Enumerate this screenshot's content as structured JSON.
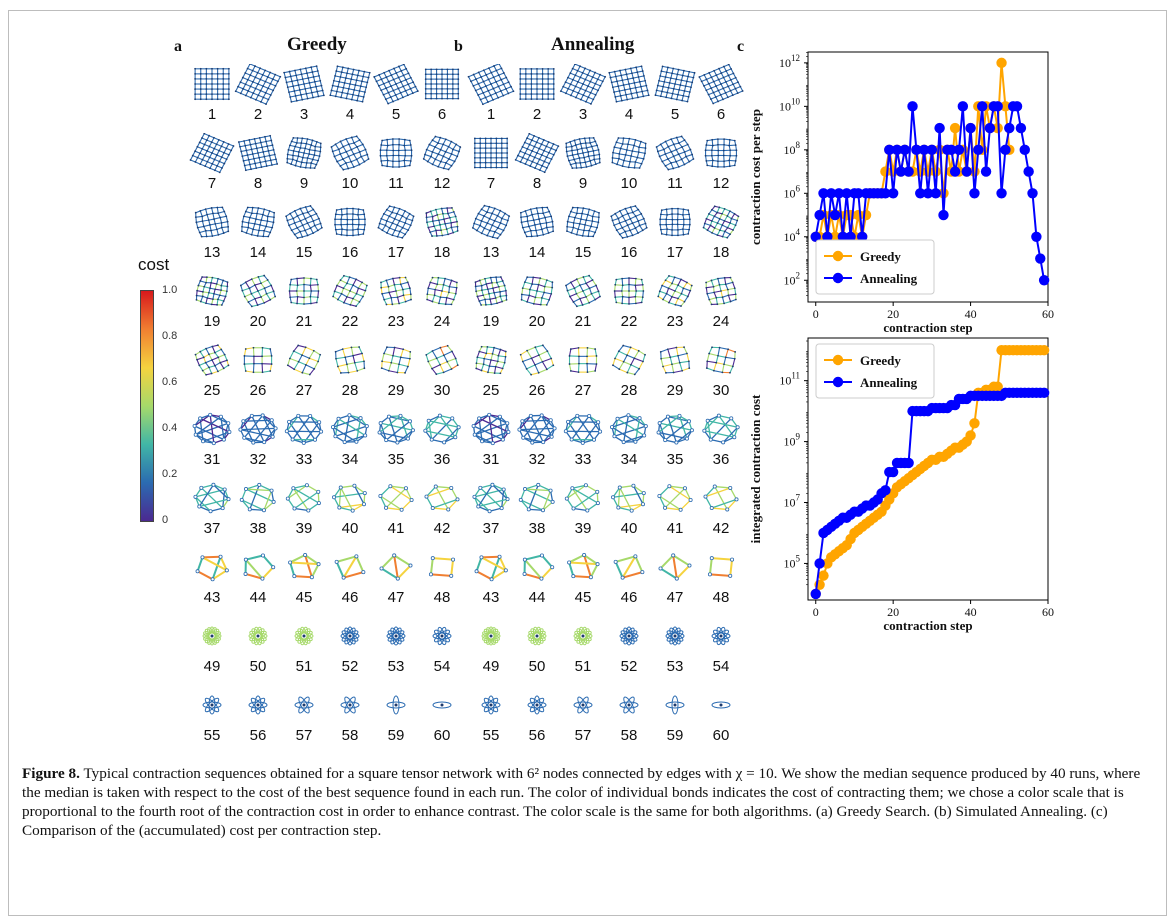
{
  "panels": {
    "a": {
      "label": "a",
      "title": "Greedy"
    },
    "b": {
      "label": "b",
      "title": "Annealing"
    },
    "c": {
      "label": "c"
    }
  },
  "step_numbers": [
    "1",
    "2",
    "3",
    "4",
    "5",
    "6",
    "7",
    "8",
    "9",
    "10",
    "11",
    "12",
    "13",
    "14",
    "15",
    "16",
    "17",
    "18",
    "19",
    "20",
    "21",
    "22",
    "23",
    "24",
    "25",
    "26",
    "27",
    "28",
    "29",
    "30",
    "31",
    "32",
    "33",
    "34",
    "35",
    "36",
    "37",
    "38",
    "39",
    "40",
    "41",
    "42",
    "43",
    "44",
    "45",
    "46",
    "47",
    "48",
    "49",
    "50",
    "51",
    "52",
    "53",
    "54",
    "55",
    "56",
    "57",
    "58",
    "59",
    "60"
  ],
  "colorbar": {
    "title": "cost",
    "ticks": [
      "1.0",
      "0.8",
      "0.6",
      "0.4",
      "0.2",
      "0"
    ],
    "colors": [
      "#d7191c",
      "#f07f31",
      "#f5d33f",
      "#a6d96a",
      "#41b6a6",
      "#2b6bb1",
      "#4b2991"
    ]
  },
  "series_colors": {
    "greedy": "#ffa500",
    "annealing": "#0000ff"
  },
  "chart_data": [
    {
      "type": "line",
      "xlabel": "contraction step",
      "ylabel": "contraction cost per step",
      "xlim": [
        -2,
        60
      ],
      "ylim_log10": [
        1,
        12.5
      ],
      "log_y": true,
      "x_ticks": [
        "0",
        "20",
        "40",
        "60"
      ],
      "y_ticks": [
        "10^2",
        "10^4",
        "10^6",
        "10^8",
        "10^10",
        "10^12"
      ],
      "legend": "lower-left",
      "series": [
        {
          "name": "Greedy",
          "x": [
            0,
            1,
            2,
            3,
            4,
            5,
            6,
            7,
            8,
            9,
            10,
            11,
            12,
            13,
            14,
            15,
            16,
            17,
            18,
            19,
            20,
            21,
            22,
            23,
            24,
            25,
            26,
            27,
            28,
            29,
            30,
            31,
            32,
            33,
            34,
            35,
            36,
            37,
            38,
            39,
            40,
            41,
            42,
            43,
            44,
            45,
            46,
            47,
            48,
            49,
            50
          ],
          "log10_y": [
            4,
            4,
            5,
            4,
            5,
            4,
            5,
            4,
            5,
            5,
            4,
            5,
            4,
            5,
            6,
            6,
            6,
            6,
            7,
            8,
            7,
            8,
            7,
            8,
            7,
            7,
            8,
            7,
            8,
            7,
            8,
            7,
            8,
            6,
            8,
            7,
            9,
            7,
            8,
            7,
            9,
            7,
            10,
            8,
            10,
            9,
            10,
            9,
            12,
            10,
            8
          ]
        },
        {
          "name": "Annealing",
          "x": [
            0,
            1,
            2,
            3,
            4,
            5,
            6,
            7,
            8,
            9,
            10,
            11,
            12,
            13,
            14,
            15,
            16,
            17,
            18,
            19,
            20,
            21,
            22,
            23,
            24,
            25,
            26,
            27,
            28,
            29,
            30,
            31,
            32,
            33,
            34,
            35,
            36,
            37,
            38,
            39,
            40,
            41,
            42,
            43,
            44,
            45,
            46,
            47,
            48,
            49,
            50,
            51,
            52,
            53,
            54,
            55,
            56,
            57,
            58,
            59
          ],
          "log10_y": [
            4,
            5,
            6,
            4,
            6,
            5,
            6,
            4,
            6,
            4,
            6,
            6,
            4,
            6,
            6,
            6,
            6,
            6,
            6,
            8,
            6,
            8,
            7,
            8,
            7,
            10,
            8,
            6,
            8,
            6,
            8,
            6,
            9,
            5,
            8,
            8,
            7,
            8,
            10,
            7,
            9,
            6,
            8,
            10,
            7,
            9,
            10,
            10,
            6,
            8,
            9,
            10,
            10,
            9,
            8,
            7,
            6,
            4,
            3,
            2,
            1
          ]
        }
      ]
    },
    {
      "type": "line",
      "xlabel": "contraction step",
      "ylabel": "integrated contraction cost",
      "xlim": [
        -2,
        60
      ],
      "ylim_log10": [
        3.8,
        12.4
      ],
      "log_y": true,
      "x_ticks": [
        "0",
        "20",
        "40",
        "60"
      ],
      "y_ticks": [
        "10^5",
        "10^7",
        "10^9",
        "10^11"
      ],
      "legend": "upper-left",
      "series": [
        {
          "name": "Greedy",
          "x": [
            0,
            1,
            2,
            3,
            4,
            5,
            6,
            7,
            8,
            9,
            10,
            11,
            12,
            13,
            14,
            15,
            16,
            17,
            18,
            19,
            20,
            21,
            22,
            23,
            24,
            25,
            26,
            27,
            28,
            29,
            30,
            31,
            32,
            33,
            34,
            35,
            36,
            37,
            38,
            39,
            40,
            41,
            42,
            43,
            44,
            45,
            46,
            47,
            48,
            49,
            50,
            51,
            52,
            53,
            54,
            55,
            56,
            57,
            58,
            59
          ],
          "log10_y": [
            4.0,
            4.3,
            4.6,
            5.0,
            5.2,
            5.3,
            5.4,
            5.5,
            5.6,
            5.8,
            6.0,
            6.1,
            6.2,
            6.3,
            6.4,
            6.5,
            6.6,
            6.7,
            6.9,
            7.1,
            7.3,
            7.5,
            7.6,
            7.7,
            7.8,
            7.9,
            8.0,
            8.1,
            8.2,
            8.3,
            8.4,
            8.4,
            8.5,
            8.5,
            8.6,
            8.7,
            8.8,
            8.8,
            8.9,
            9.0,
            9.2,
            9.6,
            10.6,
            10.6,
            10.7,
            10.7,
            10.8,
            10.8,
            12.0,
            12.0,
            12.0,
            12.0,
            12.0,
            12.0,
            12.0,
            12.0,
            12.0,
            12.0,
            12.0,
            12.0
          ]
        },
        {
          "name": "Annealing",
          "x": [
            0,
            1,
            2,
            3,
            4,
            5,
            6,
            7,
            8,
            9,
            10,
            11,
            12,
            13,
            14,
            15,
            16,
            17,
            18,
            19,
            20,
            21,
            22,
            23,
            24,
            25,
            26,
            27,
            28,
            29,
            30,
            31,
            32,
            33,
            34,
            35,
            36,
            37,
            38,
            39,
            40,
            41,
            42,
            43,
            44,
            45,
            46,
            47,
            48,
            49,
            50,
            51,
            52,
            53,
            54,
            55,
            56,
            57,
            58,
            59
          ],
          "log10_y": [
            4.0,
            5.0,
            6.0,
            6.1,
            6.2,
            6.3,
            6.4,
            6.5,
            6.5,
            6.6,
            6.7,
            6.7,
            6.8,
            6.9,
            6.9,
            7.0,
            7.1,
            7.3,
            7.4,
            8.0,
            8.0,
            8.3,
            8.3,
            8.3,
            8.3,
            10.0,
            10.0,
            10.0,
            10.0,
            10.0,
            10.1,
            10.1,
            10.1,
            10.1,
            10.1,
            10.2,
            10.2,
            10.4,
            10.4,
            10.4,
            10.5,
            10.5,
            10.5,
            10.5,
            10.5,
            10.5,
            10.5,
            10.5,
            10.5,
            10.6,
            10.6,
            10.6,
            10.6,
            10.6,
            10.6,
            10.6,
            10.6,
            10.6,
            10.6,
            10.6
          ]
        }
      ]
    }
  ],
  "caption": {
    "label": "Figure 8.",
    "text": "Typical contraction sequences obtained for a square tensor network with 6² nodes connected by edges with χ = 10. We show the median sequence produced by 40 runs, where the median is taken with respect to the cost of the best sequence found in each run. The color of individual bonds indicates the cost of contracting them; we chose a color scale that is proportional to the fourth root of the contraction cost in order to enhance contrast. The color scale is the same for both algorithms. (a) Greedy Search. (b) Simulated Annealing. (c) Comparison of the (accumulated) cost per contraction step."
  }
}
